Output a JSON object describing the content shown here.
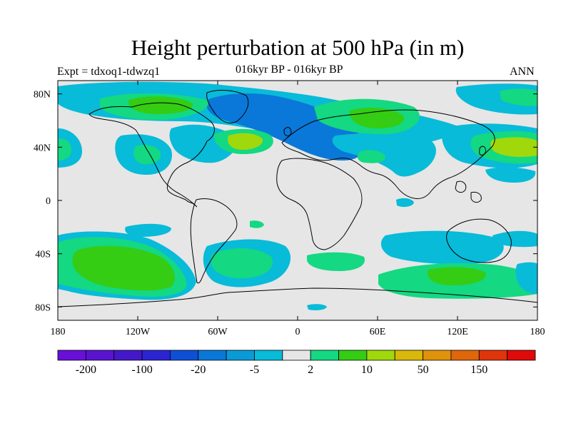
{
  "title": "Height perturbation at 500 hPa (in m)",
  "left_label": "Expt = tdxoq1-tdwzq1",
  "center_label": "016kyr BP - 016kyr BP",
  "right_label": "ANN",
  "chart_data": {
    "type": "heatmap",
    "projection": "cylindrical-equidistant",
    "lon_range": [
      -180,
      180
    ],
    "lat_range": [
      -90,
      90
    ],
    "x_ticks": [
      "180",
      "120W",
      "60W",
      "0",
      "60E",
      "120E",
      "180"
    ],
    "x_tick_values": [
      -180,
      -120,
      -60,
      0,
      60,
      120,
      180
    ],
    "y_ticks": [
      "80N",
      "40N",
      "0",
      "40S",
      "80S"
    ],
    "y_tick_values": [
      80,
      40,
      0,
      -40,
      -80
    ],
    "colorbar": {
      "colors": [
        "#6a0fd8",
        "#5a14d0",
        "#4418c8",
        "#2b24d2",
        "#0f4fd6",
        "#0a78d8",
        "#0a9ad6",
        "#08bbd8",
        "#e6e6e6",
        "#14d882",
        "#35cc14",
        "#a0d80c",
        "#d8b80a",
        "#e0920a",
        "#e0660a",
        "#e0340a",
        "#e00a0a"
      ],
      "tick_labels": [
        "-200",
        "-100",
        "-20",
        "-5",
        "2",
        "10",
        "50",
        "150"
      ]
    },
    "shaded_regions": [
      {
        "level": "-5",
        "color": "#08bbd8",
        "lon": [
          -165,
          -60
        ],
        "lat": [
          55,
          82
        ]
      },
      {
        "level": "-20",
        "color": "#0a78d8",
        "lon": [
          -80,
          30
        ],
        "lat": [
          60,
          82
        ]
      },
      {
        "level": "-20",
        "color": "#0a78d8",
        "lon": [
          0,
          60
        ],
        "lat": [
          40,
          65
        ]
      },
      {
        "level": "-5",
        "color": "#08bbd8",
        "lon": [
          -110,
          -30
        ],
        "lat": [
          20,
          55
        ]
      },
      {
        "level": "-5",
        "color": "#08bbd8",
        "lon": [
          50,
          110
        ],
        "lat": [
          20,
          45
        ]
      },
      {
        "level": "-5",
        "color": "#08bbd8",
        "lon": [
          150,
          180
        ],
        "lat": [
          70,
          85
        ]
      },
      {
        "level": "10",
        "color": "#35cc14",
        "lon": [
          -150,
          -80
        ],
        "lat": [
          70,
          85
        ]
      },
      {
        "level": "10",
        "color": "#35cc14",
        "lon": [
          20,
          80
        ],
        "lat": [
          65,
          83
        ]
      },
      {
        "level": "10",
        "color": "#35cc14",
        "lon": [
          -65,
          -20
        ],
        "lat": [
          33,
          50
        ]
      },
      {
        "level": "10",
        "color": "#35cc14",
        "lon": [
          135,
          180
        ],
        "lat": [
          25,
          55
        ]
      },
      {
        "level": "10",
        "color": "#35cc14",
        "lon": [
          -180,
          -150
        ],
        "lat": [
          25,
          50
        ]
      },
      {
        "level": "-5",
        "color": "#08bbd8",
        "lon": [
          110,
          160
        ],
        "lat": [
          10,
          25
        ]
      },
      {
        "level": "10",
        "color": "#35cc14",
        "lon": [
          -180,
          -80
        ],
        "lat": [
          -65,
          -20
        ]
      },
      {
        "level": "-5",
        "color": "#08bbd8",
        "lon": [
          -60,
          0
        ],
        "lat": [
          -65,
          -25
        ]
      },
      {
        "level": "-5",
        "color": "#08bbd8",
        "lon": [
          60,
          150
        ],
        "lat": [
          -50,
          -25
        ]
      },
      {
        "level": "10",
        "color": "#35cc14",
        "lon": [
          60,
          150
        ],
        "lat": [
          -70,
          -50
        ]
      },
      {
        "level": "2",
        "color": "#14d882",
        "lon": [
          -10,
          50
        ],
        "lat": [
          -50,
          -35
        ]
      }
    ]
  }
}
